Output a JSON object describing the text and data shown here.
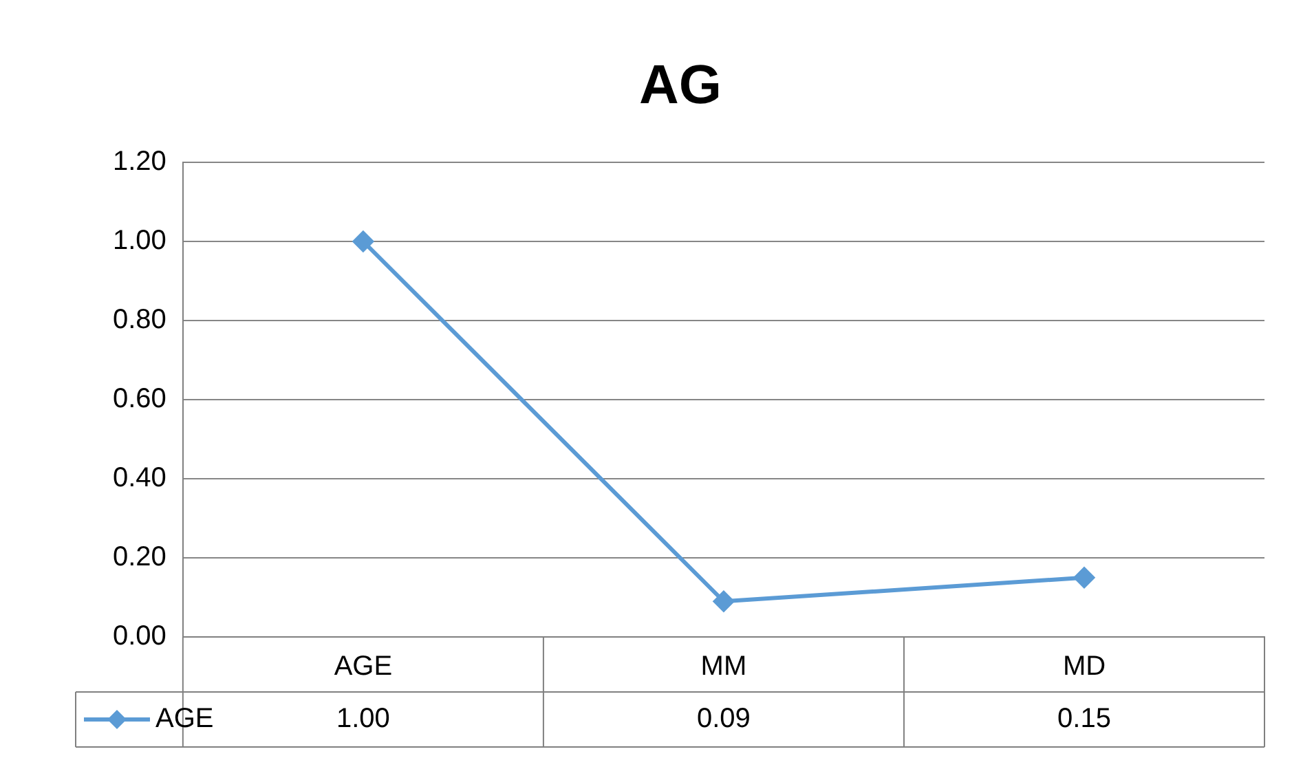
{
  "chart_data": {
    "type": "line",
    "title": "AG",
    "categories": [
      "AGE",
      "MM",
      "MD"
    ],
    "series": [
      {
        "name": "AGE",
        "color": "#5b9bd5",
        "values": [
          1.0,
          0.09,
          0.15
        ]
      }
    ],
    "ylim": [
      0,
      1.2
    ],
    "yticks": [
      {
        "value": 0,
        "label": "0.00"
      },
      {
        "value": 0.2,
        "label": "0.20"
      },
      {
        "value": 0.4,
        "label": "0.40"
      },
      {
        "value": 0.6,
        "label": "0.60"
      },
      {
        "value": 0.8,
        "label": "0.80"
      },
      {
        "value": 1,
        "label": "1.00"
      },
      {
        "value": 1.2,
        "label": "1.20"
      }
    ],
    "value_labels": [
      "1.00",
      "0.09",
      "0.15"
    ],
    "grid": "y",
    "legend": "bottom left",
    "marker": "diamond",
    "line_style": "solid"
  }
}
